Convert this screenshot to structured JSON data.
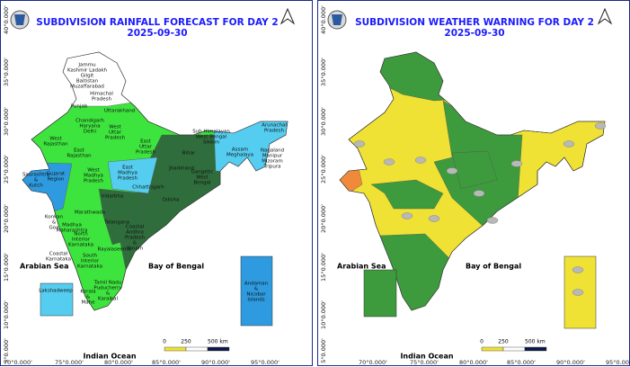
{
  "panels": [
    {
      "title": "SUBDIVISION RAINFALL FORECAST FOR DAY 2",
      "date": "2025-09-30",
      "region_labels": [
        [
          "Jammu",
          "Kashmir Ladakh",
          "Gilgit",
          "Baltistan",
          "Muzaffarabad"
        ],
        [
          "Himachal",
          "Pradesh"
        ],
        [
          "Punjab"
        ],
        [
          "Uttarakhand"
        ],
        [
          "Chandigarh",
          "Haryana",
          "Delhi"
        ],
        [
          "West",
          "Uttar",
          "Pradesh"
        ],
        [
          "East",
          "Uttar",
          "Pradesh"
        ],
        [
          "West",
          "Rajasthan"
        ],
        [
          "East",
          "Rajasthan"
        ],
        [
          "Bihar"
        ],
        [
          "Sub Himalayan",
          "West Bengal",
          "Sikkim"
        ],
        [
          "Arunachal",
          "Pradesh"
        ],
        [
          "Assam",
          "Meghalaya"
        ],
        [
          "Nagaland",
          "Manipur",
          "Mizoram",
          "Tripura"
        ],
        [
          "Jharkhand"
        ],
        [
          "Gangetic",
          "West",
          "Bengal"
        ],
        [
          "Saurashtra",
          "&",
          "Kutch"
        ],
        [
          "Gujarat",
          "Region"
        ],
        [
          "West",
          "Madhya",
          "Pradesh"
        ],
        [
          "East",
          "Madhya",
          "Pradesh"
        ],
        [
          "Chhattisgarh"
        ],
        [
          "Odisha"
        ],
        [
          "Vidarbha"
        ],
        [
          "Marathwada"
        ],
        [
          "Konkan",
          "&",
          "Goa"
        ],
        [
          "Madhya",
          "Maharashtra"
        ],
        [
          "Telangana"
        ],
        [
          "North",
          "Interior",
          "Karnataka"
        ],
        [
          "Coastal",
          "Andhra",
          "Pradesh",
          "&",
          "Yanam"
        ],
        [
          "Rayalaseema"
        ],
        [
          "Coastal",
          "Karnataka"
        ],
        [
          "South",
          "Interior",
          "Karnataka"
        ],
        [
          "Tamil Nadu",
          "Puducherry",
          "&",
          "Karaikal"
        ],
        [
          "Kerala",
          "&",
          "Mahe"
        ],
        [
          "Lakshadweep"
        ],
        [
          "Andaman",
          "&",
          "Nicobar",
          "Islands"
        ]
      ],
      "seas": {
        "arabian_sea": "Arabian Sea",
        "bay_of_bengal": "Bay of Bengal",
        "indian_ocean": "Indian Ocean"
      },
      "scale": [
        "0",
        "250",
        "500 km"
      ],
      "lat_labels": [
        "40°0.000'",
        "35°0.000'",
        "30°0.000'",
        "25°0.000'",
        "20°0.000'",
        "15°0.000'",
        "10°0.000'",
        "5°0.000'"
      ],
      "lon_labels": [
        "70°0.000'",
        "75°0.000'",
        "80°0.000'",
        "85°0.000'",
        "90°0.000'",
        "95°0.000'"
      ]
    },
    {
      "title": "SUBDIVISION WEATHER WARNING FOR DAY 2",
      "date": "2025-09-30",
      "region_labels": [],
      "seas": {
        "arabian_sea": "Arabian Sea",
        "bay_of_bengal": "Bay of Bengal",
        "indian_ocean": "Indian Ocean"
      },
      "scale": [
        "0",
        "250",
        "500 km"
      ],
      "lat_labels": [
        "40°0.000'",
        "35°0.000'",
        "30°0.000'",
        "25°0.000'",
        "20°0.000'",
        "15°0.000'",
        "10°0.000'",
        "5°0.000'"
      ],
      "lon_labels": [
        "70°0.000'",
        "75°0.000'",
        "80°0.000'",
        "85°0.000'",
        "90°0.000'",
        "95°0.000'"
      ]
    }
  ]
}
